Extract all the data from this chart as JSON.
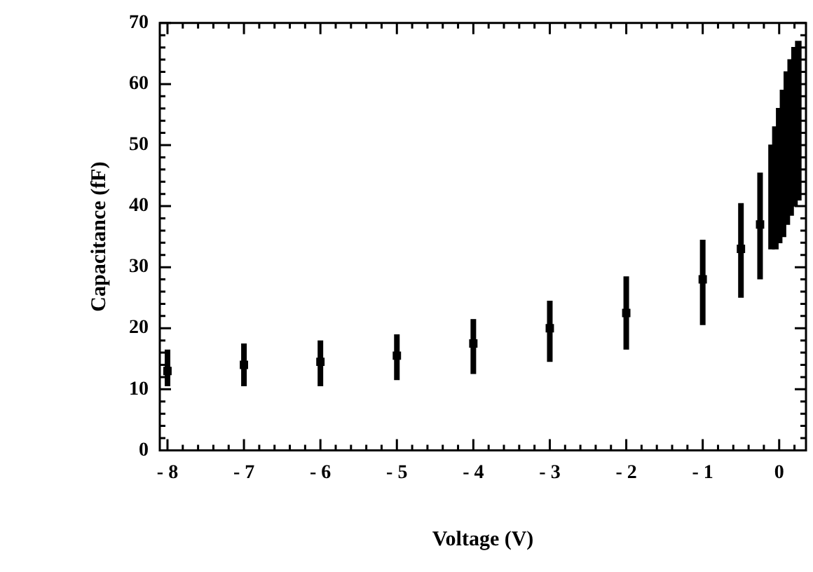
{
  "chart_data": {
    "type": "scatter",
    "xlabel": "Voltage (V)",
    "ylabel": "Capacitance (fF)",
    "xlim": [
      -8,
      0.25
    ],
    "ylim": [
      0,
      70
    ],
    "xticks": [
      {
        "value": -8,
        "label": "- 8"
      },
      {
        "value": -7.8,
        "label": null
      },
      {
        "value": -7.6,
        "label": null
      },
      {
        "value": -7.4,
        "label": null
      },
      {
        "value": -7.2,
        "label": null
      },
      {
        "value": -7,
        "label": "- 7"
      },
      {
        "value": -6.8,
        "label": null
      },
      {
        "value": -6.6,
        "label": null
      },
      {
        "value": -6.4,
        "label": null
      },
      {
        "value": -6.2,
        "label": null
      },
      {
        "value": -6,
        "label": "- 6"
      },
      {
        "value": -5.8,
        "label": null
      },
      {
        "value": -5.6,
        "label": null
      },
      {
        "value": -5.4,
        "label": null
      },
      {
        "value": -5.2,
        "label": null
      },
      {
        "value": -5,
        "label": "- 5"
      },
      {
        "value": -4.8,
        "label": null
      },
      {
        "value": -4.6,
        "label": null
      },
      {
        "value": -4.4,
        "label": null
      },
      {
        "value": -4.2,
        "label": null
      },
      {
        "value": -4,
        "label": "- 4"
      },
      {
        "value": -3.8,
        "label": null
      },
      {
        "value": -3.6,
        "label": null
      },
      {
        "value": -3.4,
        "label": null
      },
      {
        "value": -3.2,
        "label": null
      },
      {
        "value": -3,
        "label": "- 3"
      },
      {
        "value": -2.8,
        "label": null
      },
      {
        "value": -2.6,
        "label": null
      },
      {
        "value": -2.4,
        "label": null
      },
      {
        "value": -2.2,
        "label": null
      },
      {
        "value": -2,
        "label": "- 2"
      },
      {
        "value": -1.8,
        "label": null
      },
      {
        "value": -1.6,
        "label": null
      },
      {
        "value": -1.4,
        "label": null
      },
      {
        "value": -1.2,
        "label": null
      },
      {
        "value": -1,
        "label": "- 1"
      },
      {
        "value": -0.8,
        "label": null
      },
      {
        "value": -0.6,
        "label": null
      },
      {
        "value": -0.4,
        "label": null
      },
      {
        "value": -0.2,
        "label": null
      },
      {
        "value": 0,
        "label": "0"
      },
      {
        "value": 0.2,
        "label": null
      }
    ],
    "yticks": [
      0,
      {
        "value": 2,
        "label": null
      },
      {
        "value": 4,
        "label": null
      },
      {
        "value": 6,
        "label": null
      },
      {
        "value": 8,
        "label": null
      },
      10,
      {
        "value": 12,
        "label": null
      },
      {
        "value": 14,
        "label": null
      },
      {
        "value": 16,
        "label": null
      },
      {
        "value": 18,
        "label": null
      },
      20,
      {
        "value": 22,
        "label": null
      },
      {
        "value": 24,
        "label": null
      },
      {
        "value": 26,
        "label": null
      },
      {
        "value": 28,
        "label": null
      },
      30,
      {
        "value": 32,
        "label": null
      },
      {
        "value": 34,
        "label": null
      },
      {
        "value": 36,
        "label": null
      },
      {
        "value": 38,
        "label": null
      },
      40,
      {
        "value": 42,
        "label": null
      },
      {
        "value": 44,
        "label": null
      },
      {
        "value": 46,
        "label": null
      },
      {
        "value": 48,
        "label": null
      },
      50,
      {
        "value": 52,
        "label": null
      },
      {
        "value": 54,
        "label": null
      },
      {
        "value": 56,
        "label": null
      },
      {
        "value": 58,
        "label": null
      },
      60,
      {
        "value": 62,
        "label": null
      },
      {
        "value": 64,
        "label": null
      },
      {
        "value": 66,
        "label": null
      },
      {
        "value": 68,
        "label": null
      },
      70
    ],
    "grid": false,
    "legend": false,
    "marker": "square",
    "series": [
      {
        "color": "#000000",
        "x": [
          -8,
          -7,
          -6,
          -5,
          -4,
          -3,
          -2,
          -1,
          -0.5,
          -0.25
        ],
        "values": [
          13,
          14,
          14.5,
          15.5,
          17.5,
          20,
          22.5,
          28,
          33,
          37
        ],
        "errors": [
          [
            10.5,
            16.5
          ],
          [
            10.5,
            17.5
          ],
          [
            10.5,
            18
          ],
          [
            11.5,
            19
          ],
          [
            12.5,
            21.5
          ],
          [
            14.5,
            24.5
          ],
          [
            16.5,
            28.5
          ],
          [
            20.5,
            34.5
          ],
          [
            25,
            40.5
          ],
          [
            28,
            45.5
          ]
        ]
      },
      {
        "type": "bar",
        "color": "#000000",
        "x": [
          -0.1,
          -0.05,
          0,
          0.05,
          0.1,
          0.15,
          0.2,
          0.25
        ],
        "base": [
          33,
          33,
          34,
          35,
          37,
          38.5,
          40,
          41
        ],
        "values": [
          17,
          20,
          22,
          24,
          25,
          25.5,
          26,
          26
        ]
      }
    ]
  }
}
